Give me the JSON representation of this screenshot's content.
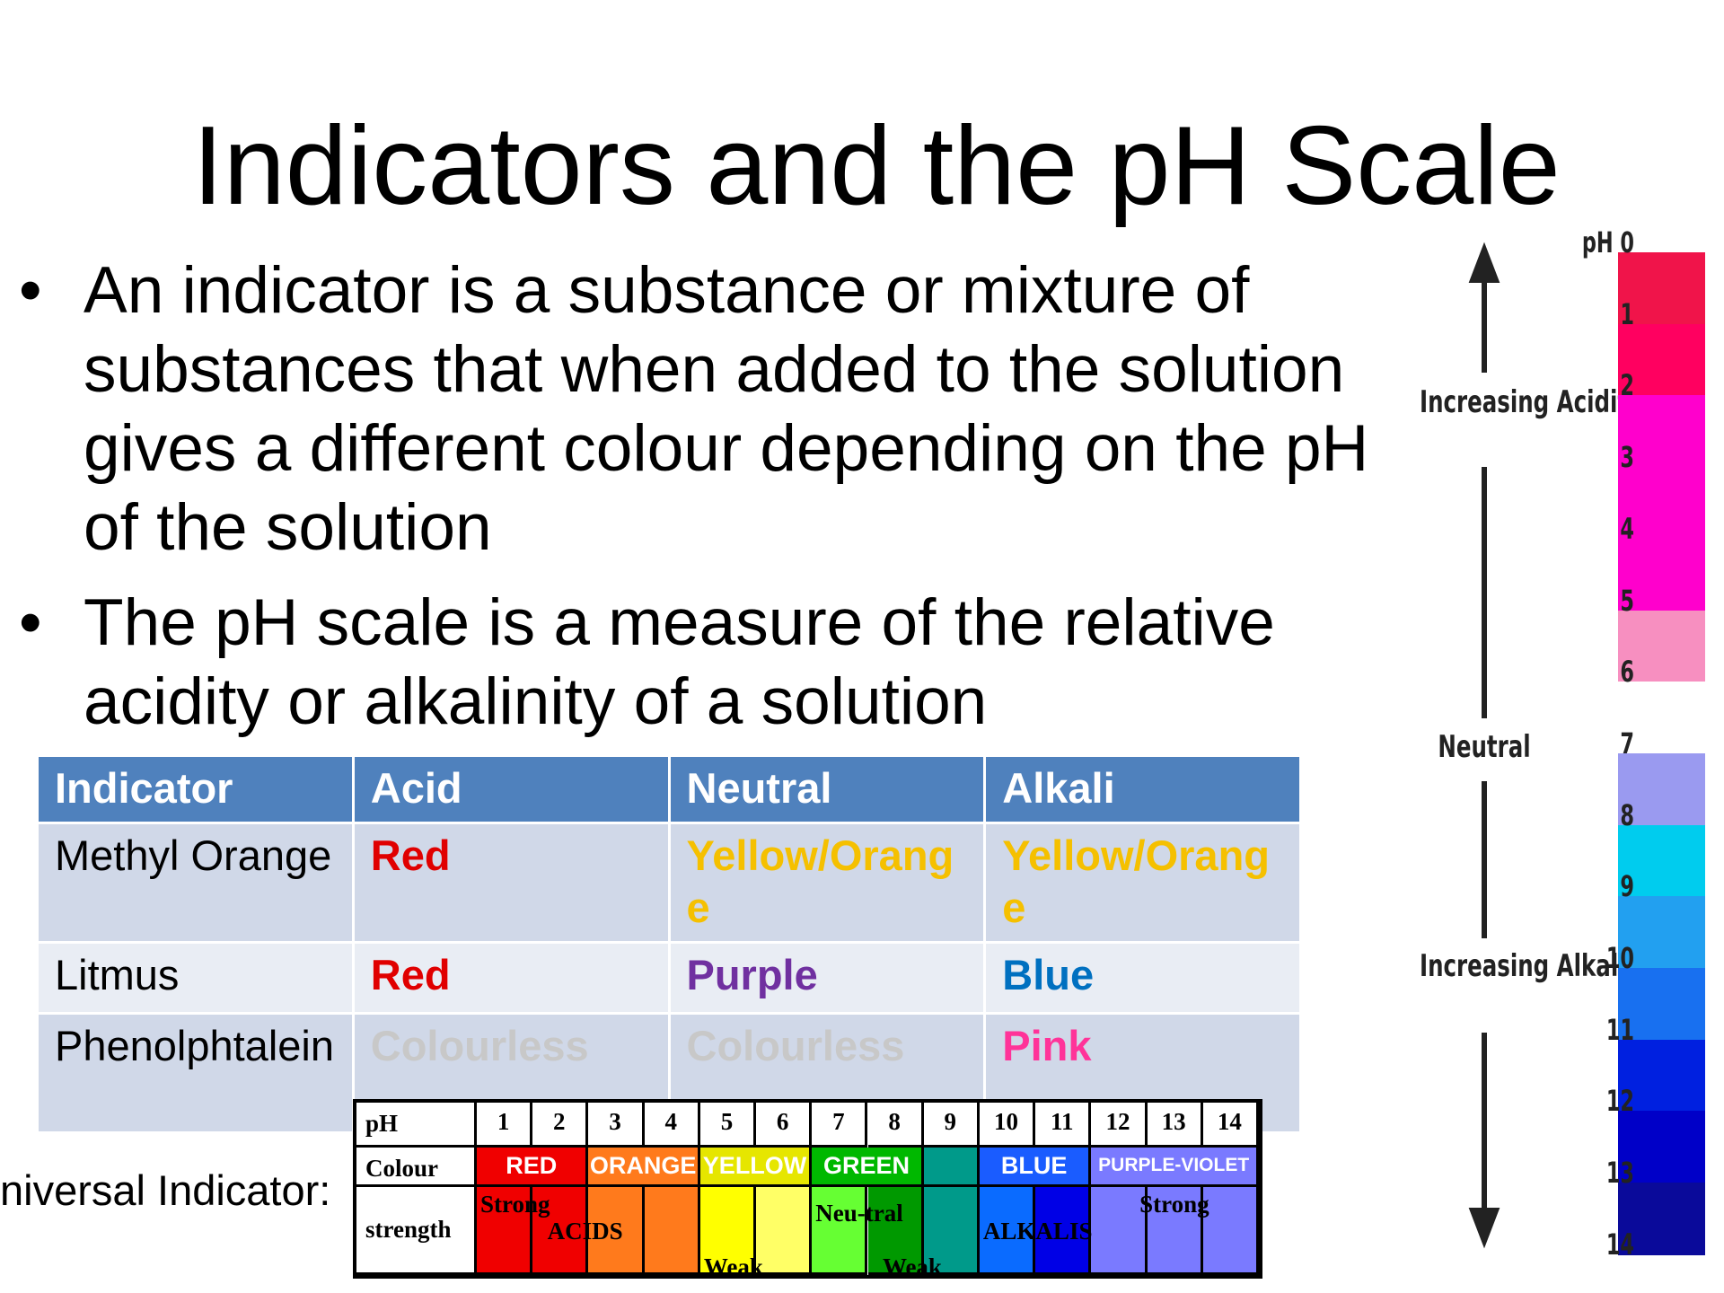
{
  "title": "Indicators and the pH Scale",
  "bullets": [
    "An indicator is a substance or mixture of substances that when added to the solution gives a different colour depending on the pH of the solution",
    "The pH scale is a measure of the relative acidity or alkalinity of a solution"
  ],
  "table": {
    "header": [
      "Indicator",
      "Acid",
      "Neutral",
      "Alkali"
    ],
    "rows": [
      [
        "Methyl Orange",
        "Red",
        "Yellow/Orange",
        "Yellow/Orange"
      ],
      [
        "Litmus",
        "Red",
        "Purple",
        "Blue"
      ],
      [
        "Phenolphtalein",
        "Colourless",
        "Colourless",
        "Pink"
      ]
    ]
  },
  "universal_indicator": {
    "label": "niversal Indicator:",
    "row_labels": [
      "pH",
      "Colour",
      "strength"
    ],
    "ph": [
      1,
      2,
      3,
      4,
      5,
      6,
      7,
      8,
      9,
      10,
      11,
      12,
      13,
      14
    ],
    "colours": [
      "RED",
      "ORANGE",
      "YELLOW",
      "GREEN",
      "BLUE",
      "PURPLE-VIOLET"
    ],
    "strength": [
      "Strong",
      "ACIDS",
      "Weak",
      "Neu-tral",
      "Weak",
      "ALKALIS",
      "Strong"
    ]
  },
  "ph_scale": {
    "ticks": [
      "pH 0",
      1,
      2,
      3,
      4,
      5,
      6,
      7,
      8,
      9,
      10,
      11,
      12,
      13,
      14
    ],
    "labels": [
      "Increasing Acidity",
      "Neutral",
      "Increasing Alkalinity"
    ]
  }
}
